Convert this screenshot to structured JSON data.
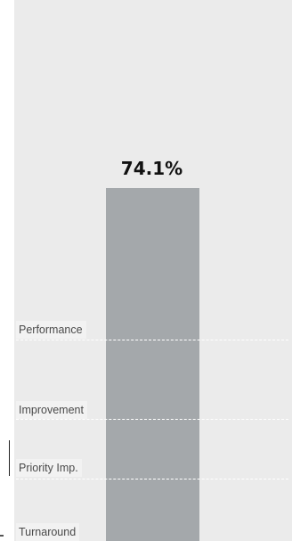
{
  "chart_data": {
    "type": "bar",
    "categories": [
      ""
    ],
    "values": [
      74.1
    ],
    "value_label": "74.1%",
    "reference_lines": [
      {
        "label": "Performance"
      },
      {
        "label": "Improvement"
      },
      {
        "label": "Priority Imp."
      },
      {
        "label": "Turnaround"
      }
    ],
    "ylim": [
      0,
      100
    ],
    "grid": false,
    "legend": "none"
  },
  "colors": {
    "panel": "#ebebeb",
    "bar": "#a4a8ab",
    "ref_line": "#ffffff",
    "label_box": "#f2f2f2",
    "text": "#111111"
  }
}
